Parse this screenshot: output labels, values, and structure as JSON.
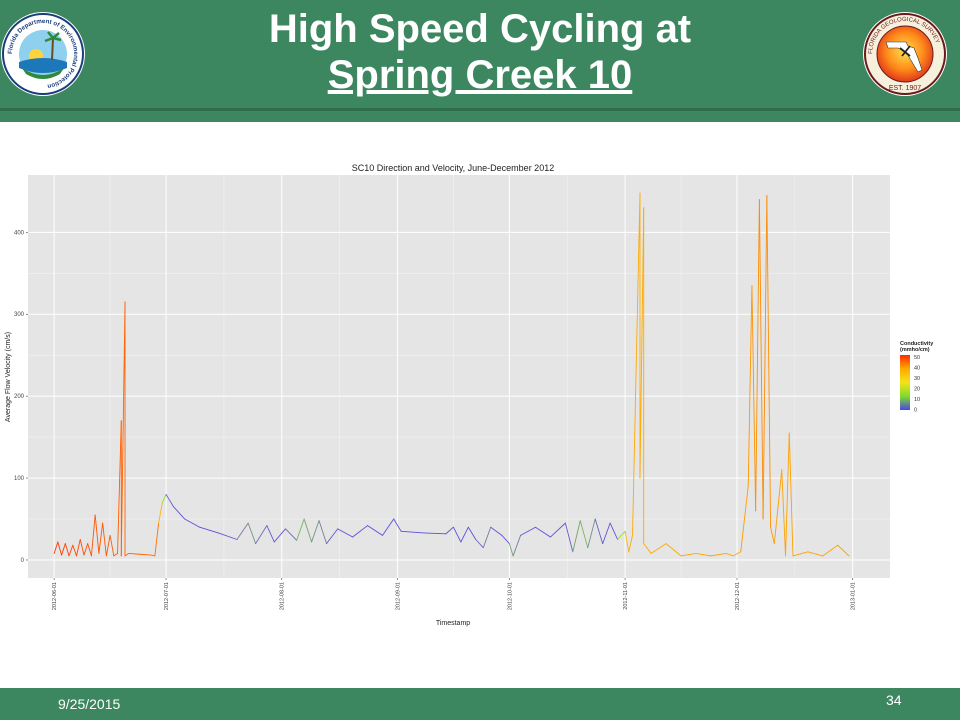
{
  "slide": {
    "title_line1": "High Speed Cycling at",
    "title_line2": "Spring Creek 10",
    "footer_date": "9/25/2015",
    "page_number": "34",
    "left_logo_text": "Florida Department of Environmental Protection",
    "right_logo_text": "FLORIDA GEOLOGICAL SURVEY",
    "right_logo_est": "EST. 1907"
  },
  "colors": {
    "header_green": "#3c8660",
    "panel_bg": "#e5e5e5",
    "grid": "#ffffff",
    "scale_low": "#6a5acd",
    "scale_mid": "#7fdc2a",
    "scale_high": "#ff2a00"
  },
  "chart_data": {
    "type": "line",
    "title": "SC10 Direction and Velocity, June-December 2012",
    "xlabel": "Timestamp",
    "ylabel": "Average Flow Velocity (cm/s)",
    "x_tick_labels": [
      "2012-06-01",
      "2012-07-01",
      "2012-08-01",
      "2012-09-01",
      "2012-10-01",
      "2012-11-01",
      "2012-12-01",
      "2013-01-01"
    ],
    "y_ticks": [
      0,
      100,
      200,
      300,
      400
    ],
    "ylim": [
      -22,
      470
    ],
    "xlim": [
      "2012-05-25",
      "2013-01-11"
    ],
    "grid": true,
    "legend": {
      "title_line1": "Conductivity",
      "title_line2": "(mmho/cm)",
      "labels": [
        "50",
        "40",
        "30",
        "20",
        "10",
        "0"
      ],
      "placement": "right"
    },
    "series": [
      {
        "color_by": "conductivity",
        "points": [
          [
            "2012-06-01",
            8,
            48
          ],
          [
            "2012-06-02",
            22,
            48
          ],
          [
            "2012-06-03",
            6,
            48
          ],
          [
            "2012-06-04",
            20,
            47
          ],
          [
            "2012-06-05",
            5,
            47
          ],
          [
            "2012-06-06",
            18,
            46
          ],
          [
            "2012-06-07",
            5,
            46
          ],
          [
            "2012-06-08",
            25,
            46
          ],
          [
            "2012-06-09",
            6,
            45
          ],
          [
            "2012-06-10",
            20,
            45
          ],
          [
            "2012-06-11",
            5,
            45
          ],
          [
            "2012-06-12",
            55,
            44
          ],
          [
            "2012-06-13",
            8,
            44
          ],
          [
            "2012-06-14",
            45,
            44
          ],
          [
            "2012-06-15",
            5,
            44
          ],
          [
            "2012-06-16",
            30,
            43
          ],
          [
            "2012-06-17",
            5,
            43
          ],
          [
            "2012-06-18",
            8,
            43
          ],
          [
            "2012-06-19",
            170,
            43
          ],
          [
            "2012-06-19",
            5,
            43
          ],
          [
            "2012-06-20",
            315,
            42
          ],
          [
            "2012-06-20",
            5,
            42
          ],
          [
            "2012-06-21",
            8,
            42
          ],
          [
            "2012-06-24",
            7,
            42
          ],
          [
            "2012-06-27",
            6,
            41
          ],
          [
            "2012-06-28",
            5,
            41
          ],
          [
            "2012-06-29",
            45,
            40
          ],
          [
            "2012-06-30",
            70,
            22
          ],
          [
            "2012-07-01",
            80,
            10
          ],
          [
            "2012-07-03",
            65,
            6
          ],
          [
            "2012-07-06",
            50,
            5
          ],
          [
            "2012-07-10",
            40,
            4
          ],
          [
            "2012-07-15",
            33,
            4
          ],
          [
            "2012-07-20",
            25,
            8
          ],
          [
            "2012-07-23",
            45,
            12
          ],
          [
            "2012-07-25",
            20,
            10
          ],
          [
            "2012-07-28",
            42,
            8
          ],
          [
            "2012-07-30",
            22,
            6
          ],
          [
            "2012-08-02",
            38,
            6
          ],
          [
            "2012-08-05",
            24,
            12
          ],
          [
            "2012-08-07",
            50,
            14
          ],
          [
            "2012-08-09",
            22,
            10
          ],
          [
            "2012-08-11",
            48,
            12
          ],
          [
            "2012-08-13",
            20,
            8
          ],
          [
            "2012-08-16",
            38,
            5
          ],
          [
            "2012-08-20",
            28,
            4
          ],
          [
            "2012-08-24",
            42,
            4
          ],
          [
            "2012-08-28",
            30,
            4
          ],
          [
            "2012-08-31",
            50,
            4
          ],
          [
            "2012-09-02",
            35,
            4
          ],
          [
            "2012-09-08",
            33,
            4
          ],
          [
            "2012-09-14",
            32,
            4
          ],
          [
            "2012-09-16",
            40,
            4
          ],
          [
            "2012-09-18",
            22,
            4
          ],
          [
            "2012-09-20",
            40,
            4
          ],
          [
            "2012-09-22",
            25,
            5
          ],
          [
            "2012-09-24",
            15,
            12
          ],
          [
            "2012-09-26",
            40,
            8
          ],
          [
            "2012-09-29",
            30,
            4
          ],
          [
            "2012-10-01",
            20,
            10
          ],
          [
            "2012-10-02",
            5,
            14
          ],
          [
            "2012-10-04",
            30,
            6
          ],
          [
            "2012-10-08",
            40,
            4
          ],
          [
            "2012-10-12",
            28,
            4
          ],
          [
            "2012-10-16",
            45,
            6
          ],
          [
            "2012-10-18",
            10,
            10
          ],
          [
            "2012-10-20",
            48,
            14
          ],
          [
            "2012-10-22",
            15,
            12
          ],
          [
            "2012-10-24",
            50,
            10
          ],
          [
            "2012-10-26",
            20,
            6
          ],
          [
            "2012-10-28",
            45,
            6
          ],
          [
            "2012-10-30",
            25,
            4
          ],
          [
            "2012-11-01",
            35,
            30
          ],
          [
            "2012-11-02",
            10,
            33
          ],
          [
            "2012-11-03",
            30,
            33
          ],
          [
            "2012-11-05",
            448,
            33
          ],
          [
            "2012-11-05",
            100,
            33
          ],
          [
            "2012-11-06",
            430,
            33
          ],
          [
            "2012-11-06",
            20,
            33
          ],
          [
            "2012-11-08",
            8,
            33
          ],
          [
            "2012-11-12",
            20,
            33
          ],
          [
            "2012-11-16",
            5,
            33
          ],
          [
            "2012-11-20",
            8,
            33
          ],
          [
            "2012-11-24",
            5,
            34
          ],
          [
            "2012-11-28",
            8,
            34
          ],
          [
            "2012-11-30",
            5,
            34
          ],
          [
            "2012-12-02",
            10,
            34
          ],
          [
            "2012-12-04",
            90,
            35
          ],
          [
            "2012-12-05",
            335,
            36
          ],
          [
            "2012-12-06",
            60,
            36
          ],
          [
            "2012-12-07",
            440,
            37
          ],
          [
            "2012-12-08",
            50,
            37
          ],
          [
            "2012-12-09",
            445,
            37
          ],
          [
            "2012-12-10",
            40,
            36
          ],
          [
            "2012-12-11",
            20,
            35
          ],
          [
            "2012-12-13",
            110,
            34
          ],
          [
            "2012-12-14",
            5,
            34
          ],
          [
            "2012-12-15",
            155,
            34
          ],
          [
            "2012-12-16",
            5,
            34
          ],
          [
            "2012-12-20",
            10,
            34
          ],
          [
            "2012-12-24",
            5,
            34
          ],
          [
            "2012-12-28",
            18,
            34
          ],
          [
            "2012-12-31",
            5,
            34
          ]
        ]
      }
    ]
  }
}
